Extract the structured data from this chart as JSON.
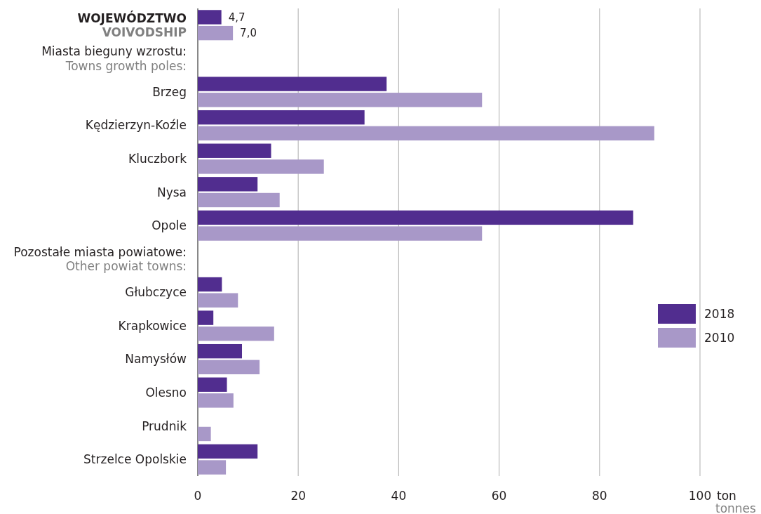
{
  "chart_data": {
    "type": "bar",
    "orientation": "horizontal",
    "categories": [
      "WOJEWÓDZTWO\nVOIVODSHIP",
      null,
      "Brzeg",
      "Kędzierzyn-Koźle",
      "Kluczbork",
      "Nysa",
      "Opole",
      null,
      "Głubczyce",
      "Krapkowice",
      "Namysłów",
      "Olesno",
      "Prudnik",
      "Strzelce Opolskie"
    ],
    "series": [
      {
        "name": "2018",
        "color": "#512d8f",
        "values": [
          4.7,
          null,
          37.6,
          33.2,
          14.6,
          11.9,
          86.7,
          null,
          4.8,
          3.1,
          8.8,
          5.8,
          null,
          11.9
        ],
        "value_labels": [
          "4,7",
          null,
          null,
          null,
          null,
          null,
          null,
          null,
          null,
          null,
          null,
          null,
          null,
          null
        ]
      },
      {
        "name": "2010",
        "color": "#a898c8",
        "values": [
          7.0,
          null,
          56.6,
          90.9,
          25.1,
          16.3,
          56.6,
          null,
          8.0,
          15.2,
          12.3,
          7.1,
          2.6,
          5.6
        ],
        "value_labels": [
          "7,0",
          null,
          null,
          null,
          null,
          null,
          null,
          null,
          null,
          null,
          null,
          null,
          null,
          null
        ]
      }
    ],
    "xlim": [
      0,
      100
    ],
    "xticks": [
      0,
      20,
      40,
      60,
      80,
      100
    ],
    "xlabel": "ton\ntonnes",
    "grid": "x",
    "legend": "right",
    "annotations": [
      "Miasta bieguny wzrostu:\nTowns growth poles:",
      "Pozostałe miasta powiatowe:\nOther powiat towns:"
    ]
  }
}
